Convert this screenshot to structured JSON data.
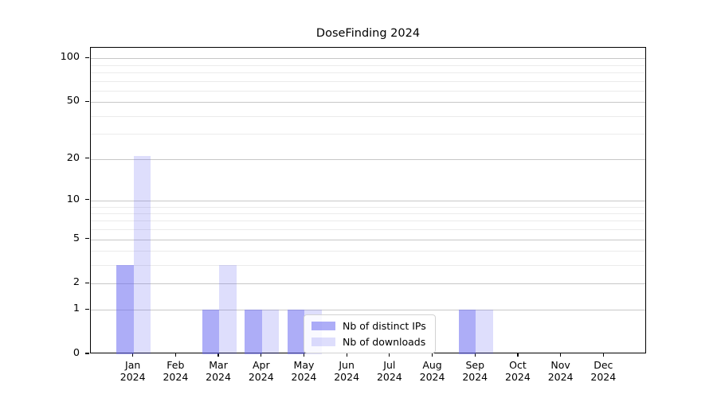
{
  "title": "DoseFinding 2024",
  "chart_data": {
    "type": "bar",
    "title": "DoseFinding 2024",
    "categories": [
      "Jan 2024",
      "Feb 2024",
      "Mar 2024",
      "Apr 2024",
      "May 2024",
      "Jun 2024",
      "Jul 2024",
      "Aug 2024",
      "Sep 2024",
      "Oct 2024",
      "Nov 2024",
      "Dec 2024"
    ],
    "x_tick_months": [
      "Jan",
      "Feb",
      "Mar",
      "Apr",
      "May",
      "Jun",
      "Jul",
      "Aug",
      "Sep",
      "Oct",
      "Nov",
      "Dec"
    ],
    "x_tick_year": "2024",
    "series": [
      {
        "name": "Nb of distinct IPs",
        "values": [
          3,
          0,
          1,
          1,
          1,
          0,
          0,
          0,
          1,
          0,
          0,
          0
        ],
        "color": "rgba(106,106,240,0.55)"
      },
      {
        "name": "Nb of downloads",
        "values": [
          21,
          0,
          3,
          1,
          1,
          0,
          0,
          0,
          1,
          0,
          0,
          0
        ],
        "color": "rgba(106,106,240,0.22)"
      }
    ],
    "yscale": "log1p",
    "ylim": [
      0,
      118
    ],
    "yticks": [
      0,
      1,
      2,
      5,
      10,
      20,
      50,
      100
    ],
    "minor_gridlines": [
      3,
      4,
      6,
      7,
      8,
      9,
      30,
      40,
      60,
      70,
      80,
      90
    ],
    "grid": true,
    "legend_position": "lower center",
    "colors": {
      "bar_distinct_ips": "rgba(106,106,240,0.55)",
      "bar_downloads": "rgba(106,106,240,0.22)",
      "grid_major": "#c7c7c7",
      "grid_minor": "#ebebeb",
      "spine": "#000000"
    }
  },
  "legend": {
    "items": [
      {
        "label": "Nb of distinct IPs"
      },
      {
        "label": "Nb of downloads"
      }
    ]
  }
}
